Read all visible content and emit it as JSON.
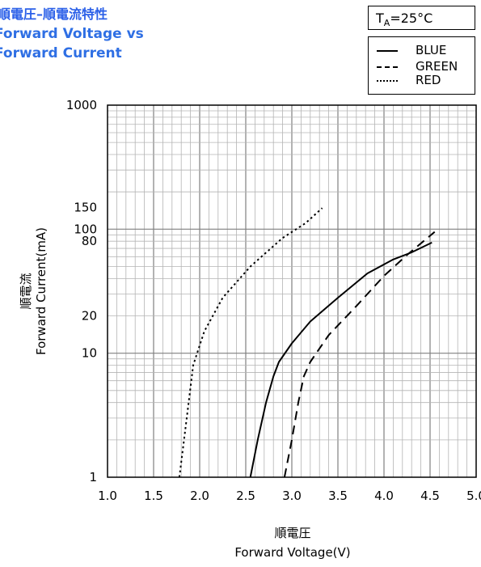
{
  "title": {
    "cn": "順電圧–順電流特性",
    "en_line1": "Forward Voltage vs",
    "en_line2": "Forward Current"
  },
  "condition": {
    "prefix": "T",
    "sub": "A",
    "suffix": "=25°C"
  },
  "legend": {
    "items": [
      {
        "label": "BLUE",
        "style": "solid"
      },
      {
        "label": "GREEN",
        "style": "dashed"
      },
      {
        "label": "RED",
        "style": "dotted"
      }
    ]
  },
  "axes": {
    "y_label_cn": "順電流",
    "y_label_en": "Forward Current(mA)",
    "x_label_cn": "順電圧",
    "x_label_en": "Forward Voltage(V)"
  },
  "chart_data": {
    "type": "line",
    "title": "Forward Voltage vs Forward Current",
    "xlabel": "Forward Voltage(V)",
    "ylabel": "Forward Current(mA)",
    "xlim": [
      1.0,
      5.0
    ],
    "ylim": [
      1,
      1000
    ],
    "yscale": "log",
    "grid": true,
    "legend_position": "top-right",
    "x_ticks": [
      "1.0",
      "1.5",
      "2.0",
      "2.5",
      "3.0",
      "3.5",
      "4.0",
      "4.5",
      "5.0"
    ],
    "y_ticks": [
      {
        "value": 1,
        "label": "1"
      },
      {
        "value": 10,
        "label": "10"
      },
      {
        "value": 20,
        "label": "20"
      },
      {
        "value": 80,
        "label": "80"
      },
      {
        "value": 100,
        "label": "100"
      },
      {
        "value": 150,
        "label": "150"
      },
      {
        "value": 1000,
        "label": "1000"
      }
    ],
    "series": [
      {
        "name": "BLUE",
        "style": "solid",
        "color": "#000000",
        "x": [
          2.55,
          2.63,
          2.72,
          2.8,
          2.86,
          3.0,
          3.2,
          3.5,
          3.82,
          4.1,
          4.3,
          4.52
        ],
        "y": [
          1,
          2,
          4,
          6.5,
          8.5,
          12,
          18,
          28,
          44,
          57,
          65,
          78
        ]
      },
      {
        "name": "GREEN",
        "style": "dashed",
        "color": "#000000",
        "x": [
          2.92,
          3.0,
          3.07,
          3.13,
          3.2,
          3.4,
          3.7,
          4.0,
          4.25,
          4.55
        ],
        "y": [
          1,
          2,
          4,
          6.5,
          8.5,
          14,
          24,
          42,
          62,
          95
        ]
      },
      {
        "name": "RED",
        "style": "dotted",
        "color": "#000000",
        "x": [
          1.78,
          1.86,
          1.93,
          2.05,
          2.25,
          2.55,
          2.9,
          3.15,
          3.33
        ],
        "y": [
          1,
          3,
          8,
          15,
          28,
          50,
          85,
          112,
          148
        ]
      }
    ]
  }
}
